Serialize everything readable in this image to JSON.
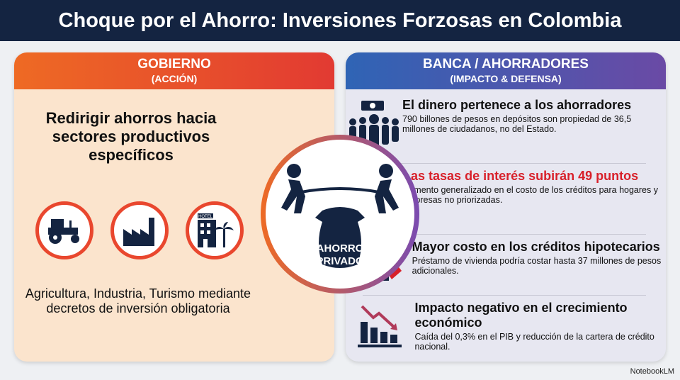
{
  "title": "Choque por el Ahorro: Inversiones Forzosas en Colombia",
  "left": {
    "header": "GOBIERNO",
    "subheader": "(ACCIÓN)",
    "heading": "Redirigir ahorros hacia sectores productivos específicos",
    "icons": [
      "tractor-icon",
      "factory-icon",
      "hotel-icon"
    ],
    "hotel_label": "HOTEL",
    "footer": "Agricultura, Industria, Turismo mediante decretos de inversión obligatoria"
  },
  "center": {
    "label_1": "AHORRO",
    "label_2": "PRIVADO"
  },
  "right": {
    "header": "BANCA / AHORRADORES",
    "subheader": "(IMPACTO & DEFENSA)",
    "items": [
      {
        "icon": "crowd-money-icon",
        "title": "El dinero pertenece a los ahorradores",
        "text": "790 billones de pesos en depósitos son propiedad de 36,5 millones de ciudadanos, no del Estado."
      },
      {
        "icon": "arrow-up-icon",
        "title": "Las tasas de interés subirán 49 puntos",
        "text": "Aumento generalizado en el costo de los créditos para hogares y empresas no priorizadas."
      },
      {
        "icon": "house-tag-icon",
        "title": "Mayor costo en los créditos hipotecarios",
        "text": "Préstamo de vivienda podría costar hasta 37 millones de pesos adicionales."
      },
      {
        "icon": "declining-chart-icon",
        "title": "Impacto negativo en el crecimiento económico",
        "text": "Caída del 0,3% en el PIB y reducción de la cartera de crédito nacional."
      }
    ]
  },
  "brand": "NotebookLM",
  "colors": {
    "navy": "#142441",
    "orange": "#ee6a24",
    "red": "#d8202a",
    "blue": "#2f64b5",
    "purple": "#6a4aa5"
  }
}
